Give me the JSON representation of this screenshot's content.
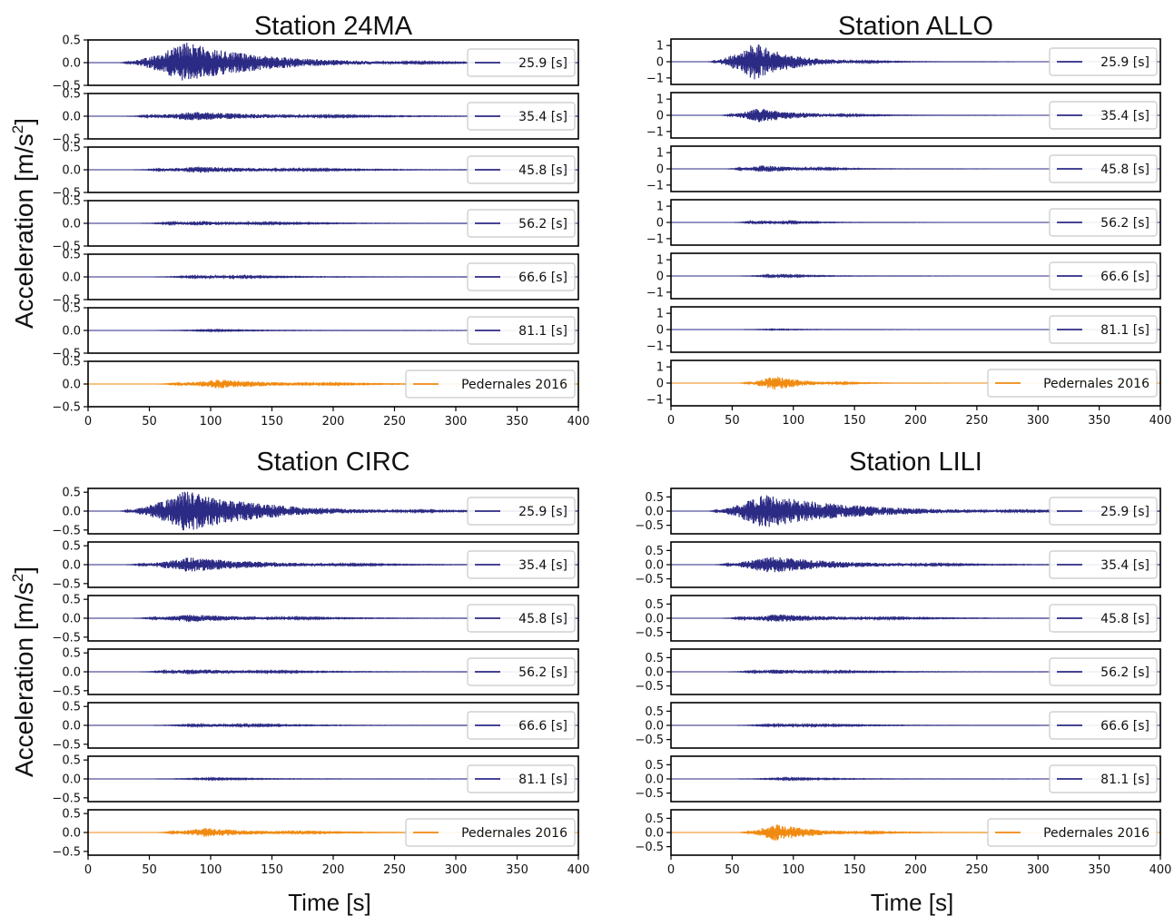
{
  "colors": {
    "wave": "#2b2a84",
    "event": "#f08a10",
    "frame": "#000000"
  },
  "ylabel_text": "Acceleration [m/s",
  "ylabel_sup": "2",
  "ylabel_close": "]",
  "xlabel": "Time [s]",
  "chart_data": [
    {
      "type": "line",
      "title": "Station 24MA",
      "xlim": [
        0,
        400
      ],
      "xticks": [
        "0",
        "50",
        "100",
        "150",
        "200",
        "250",
        "300",
        "350",
        "400"
      ],
      "grid": false,
      "legend_position": "right",
      "show_ylabel": true,
      "show_xlabel": false,
      "series": [
        {
          "name": "25.9 [s]",
          "ylim": [
            -0.5,
            0.5
          ],
          "yticks": [
            "0.5",
            "0.0",
            "−0.5"
          ],
          "envelope": {
            "onset": 25,
            "peak_time": 80,
            "peak_amplitude": 0.45,
            "decay": 60,
            "end": 400
          }
        },
        {
          "name": "35.4 [s]",
          "ylim": [
            -0.5,
            0.5
          ],
          "yticks": [
            "0.5",
            "0.0",
            "−0.5"
          ],
          "envelope": {
            "onset": 30,
            "peak_time": 85,
            "peak_amplitude": 0.1,
            "decay": 70,
            "end": 400
          }
        },
        {
          "name": "45.8 [s]",
          "ylim": [
            -0.5,
            0.5
          ],
          "yticks": [
            "0.5",
            "0.0",
            "−0.5"
          ],
          "envelope": {
            "onset": 35,
            "peak_time": 90,
            "peak_amplitude": 0.07,
            "decay": 70,
            "end": 400
          }
        },
        {
          "name": "56.2 [s]",
          "ylim": [
            -0.5,
            0.5
          ],
          "yticks": [
            "0.5",
            "0.0",
            "−0.5"
          ],
          "envelope": {
            "onset": 40,
            "peak_time": 90,
            "peak_amplitude": 0.05,
            "decay": 60,
            "end": 400
          }
        },
        {
          "name": "66.6 [s]",
          "ylim": [
            -0.5,
            0.5
          ],
          "yticks": [
            "0.5",
            "0.0",
            "−0.5"
          ],
          "envelope": {
            "onset": 50,
            "peak_time": 100,
            "peak_amplitude": 0.03,
            "decay": 60,
            "end": 400
          }
        },
        {
          "name": "81.1 [s]",
          "ylim": [
            -0.5,
            0.5
          ],
          "yticks": [
            "0.5",
            "0.0",
            "−0.5"
          ],
          "envelope": {
            "onset": 50,
            "peak_time": 100,
            "peak_amplitude": 0.015,
            "decay": 60,
            "end": 400
          }
        },
        {
          "name": "Pedernales 2016",
          "ylim": [
            -0.5,
            0.5
          ],
          "yticks": [
            "0.5",
            "0.0",
            "−0.5"
          ],
          "envelope": {
            "onset": 55,
            "peak_time": 105,
            "peak_amplitude": 0.1,
            "decay": 55,
            "end": 400
          }
        }
      ]
    },
    {
      "type": "line",
      "title": "Station ALLO",
      "xlim": [
        0,
        400
      ],
      "xticks": [
        "0",
        "50",
        "100",
        "150",
        "200",
        "250",
        "300",
        "350",
        "400"
      ],
      "grid": false,
      "legend_position": "right",
      "show_ylabel": false,
      "show_xlabel": false,
      "series": [
        {
          "name": "25.9 [s]",
          "ylim": [
            -1.4,
            1.4
          ],
          "yticks": [
            "1",
            "0",
            "−1"
          ],
          "envelope": {
            "onset": 30,
            "peak_time": 68,
            "peak_amplitude": 1.2,
            "decay": 30,
            "end": 400
          }
        },
        {
          "name": "35.4 [s]",
          "ylim": [
            -1.4,
            1.4
          ],
          "yticks": [
            "1",
            "0",
            "−1"
          ],
          "envelope": {
            "onset": 40,
            "peak_time": 72,
            "peak_amplitude": 0.45,
            "decay": 35,
            "end": 400
          }
        },
        {
          "name": "45.8 [s]",
          "ylim": [
            -1.4,
            1.4
          ],
          "yticks": [
            "1",
            "0",
            "−1"
          ],
          "envelope": {
            "onset": 45,
            "peak_time": 75,
            "peak_amplitude": 0.22,
            "decay": 35,
            "end": 400
          }
        },
        {
          "name": "56.2 [s]",
          "ylim": [
            -1.4,
            1.4
          ],
          "yticks": [
            "1",
            "0",
            "−1"
          ],
          "envelope": {
            "onset": 50,
            "peak_time": 75,
            "peak_amplitude": 0.12,
            "decay": 30,
            "end": 400
          }
        },
        {
          "name": "66.6 [s]",
          "ylim": [
            -1.4,
            1.4
          ],
          "yticks": [
            "1",
            "0",
            "−1"
          ],
          "envelope": {
            "onset": 55,
            "peak_time": 85,
            "peak_amplitude": 0.07,
            "decay": 35,
            "end": 400
          }
        },
        {
          "name": "81.1 [s]",
          "ylim": [
            -1.4,
            1.4
          ],
          "yticks": [
            "1",
            "0",
            "−1"
          ],
          "envelope": {
            "onset": 55,
            "peak_time": 85,
            "peak_amplitude": 0.03,
            "decay": 35,
            "end": 400
          }
        },
        {
          "name": "Pedernales 2016",
          "ylim": [
            -1.4,
            1.4
          ],
          "yticks": [
            "1",
            "0",
            "−1"
          ],
          "envelope": {
            "onset": 55,
            "peak_time": 85,
            "peak_amplitude": 0.45,
            "decay": 25,
            "end": 400
          }
        }
      ]
    },
    {
      "type": "line",
      "title": "Station CIRC",
      "xlim": [
        0,
        400
      ],
      "xticks": [
        "0",
        "50",
        "100",
        "150",
        "200",
        "250",
        "300",
        "350",
        "400"
      ],
      "grid": false,
      "legend_position": "right",
      "show_ylabel": true,
      "show_xlabel": true,
      "series": [
        {
          "name": "25.9 [s]",
          "ylim": [
            -0.6,
            0.6
          ],
          "yticks": [
            "0.5",
            "0.0",
            "−0.5"
          ],
          "envelope": {
            "onset": 25,
            "peak_time": 80,
            "peak_amplitude": 0.55,
            "decay": 60,
            "end": 400
          }
        },
        {
          "name": "35.4 [s]",
          "ylim": [
            -0.6,
            0.6
          ],
          "yticks": [
            "0.5",
            "0.0",
            "−0.5"
          ],
          "envelope": {
            "onset": 30,
            "peak_time": 82,
            "peak_amplitude": 0.2,
            "decay": 60,
            "end": 400
          }
        },
        {
          "name": "45.8 [s]",
          "ylim": [
            -0.6,
            0.6
          ],
          "yticks": [
            "0.5",
            "0.0",
            "−0.5"
          ],
          "envelope": {
            "onset": 35,
            "peak_time": 82,
            "peak_amplitude": 0.1,
            "decay": 60,
            "end": 400
          }
        },
        {
          "name": "56.2 [s]",
          "ylim": [
            -0.6,
            0.6
          ],
          "yticks": [
            "0.5",
            "0.0",
            "−0.5"
          ],
          "envelope": {
            "onset": 40,
            "peak_time": 85,
            "peak_amplitude": 0.07,
            "decay": 60,
            "end": 400
          }
        },
        {
          "name": "66.6 [s]",
          "ylim": [
            -0.6,
            0.6
          ],
          "yticks": [
            "0.5",
            "0.0",
            "−0.5"
          ],
          "envelope": {
            "onset": 50,
            "peak_time": 100,
            "peak_amplitude": 0.04,
            "decay": 60,
            "end": 400
          }
        },
        {
          "name": "81.1 [s]",
          "ylim": [
            -0.6,
            0.6
          ],
          "yticks": [
            "0.5",
            "0.0",
            "−0.5"
          ],
          "envelope": {
            "onset": 50,
            "peak_time": 100,
            "peak_amplitude": 0.02,
            "decay": 60,
            "end": 400
          }
        },
        {
          "name": "Pedernales 2016",
          "ylim": [
            -0.6,
            0.6
          ],
          "yticks": [
            "0.5",
            "0.0",
            "−0.5"
          ],
          "envelope": {
            "onset": 55,
            "peak_time": 95,
            "peak_amplitude": 0.12,
            "decay": 50,
            "end": 400
          }
        }
      ]
    },
    {
      "type": "line",
      "title": "Station LILI",
      "xlim": [
        0,
        400
      ],
      "xticks": [
        "0",
        "50",
        "100",
        "150",
        "200",
        "250",
        "300",
        "350",
        "400"
      ],
      "grid": false,
      "legend_position": "right",
      "show_ylabel": false,
      "show_xlabel": true,
      "series": [
        {
          "name": "25.9 [s]",
          "ylim": [
            -0.8,
            0.8
          ],
          "yticks": [
            "0.5",
            "0.0",
            "−0.5"
          ],
          "envelope": {
            "onset": 30,
            "peak_time": 75,
            "peak_amplitude": 0.6,
            "decay": 70,
            "end": 400
          }
        },
        {
          "name": "35.4 [s]",
          "ylim": [
            -0.8,
            0.8
          ],
          "yticks": [
            "0.5",
            "0.0",
            "−0.5"
          ],
          "envelope": {
            "onset": 35,
            "peak_time": 80,
            "peak_amplitude": 0.3,
            "decay": 60,
            "end": 400
          }
        },
        {
          "name": "45.8 [s]",
          "ylim": [
            -0.8,
            0.8
          ],
          "yticks": [
            "0.5",
            "0.0",
            "−0.5"
          ],
          "envelope": {
            "onset": 40,
            "peak_time": 85,
            "peak_amplitude": 0.14,
            "decay": 60,
            "end": 400
          }
        },
        {
          "name": "56.2 [s]",
          "ylim": [
            -0.8,
            0.8
          ],
          "yticks": [
            "0.5",
            "0.0",
            "−0.5"
          ],
          "envelope": {
            "onset": 45,
            "peak_time": 85,
            "peak_amplitude": 0.08,
            "decay": 55,
            "end": 400
          }
        },
        {
          "name": "66.6 [s]",
          "ylim": [
            -0.8,
            0.8
          ],
          "yticks": [
            "0.5",
            "0.0",
            "−0.5"
          ],
          "envelope": {
            "onset": 50,
            "peak_time": 95,
            "peak_amplitude": 0.05,
            "decay": 55,
            "end": 400
          }
        },
        {
          "name": "81.1 [s]",
          "ylim": [
            -0.8,
            0.8
          ],
          "yticks": [
            "0.5",
            "0.0",
            "−0.5"
          ],
          "envelope": {
            "onset": 50,
            "peak_time": 95,
            "peak_amplitude": 0.03,
            "decay": 55,
            "end": 400
          }
        },
        {
          "name": "Pedernales 2016",
          "ylim": [
            -0.8,
            0.8
          ],
          "yticks": [
            "0.5",
            "0.0",
            "−0.5"
          ],
          "envelope": {
            "onset": 55,
            "peak_time": 85,
            "peak_amplitude": 0.3,
            "decay": 35,
            "end": 400
          }
        }
      ]
    }
  ]
}
